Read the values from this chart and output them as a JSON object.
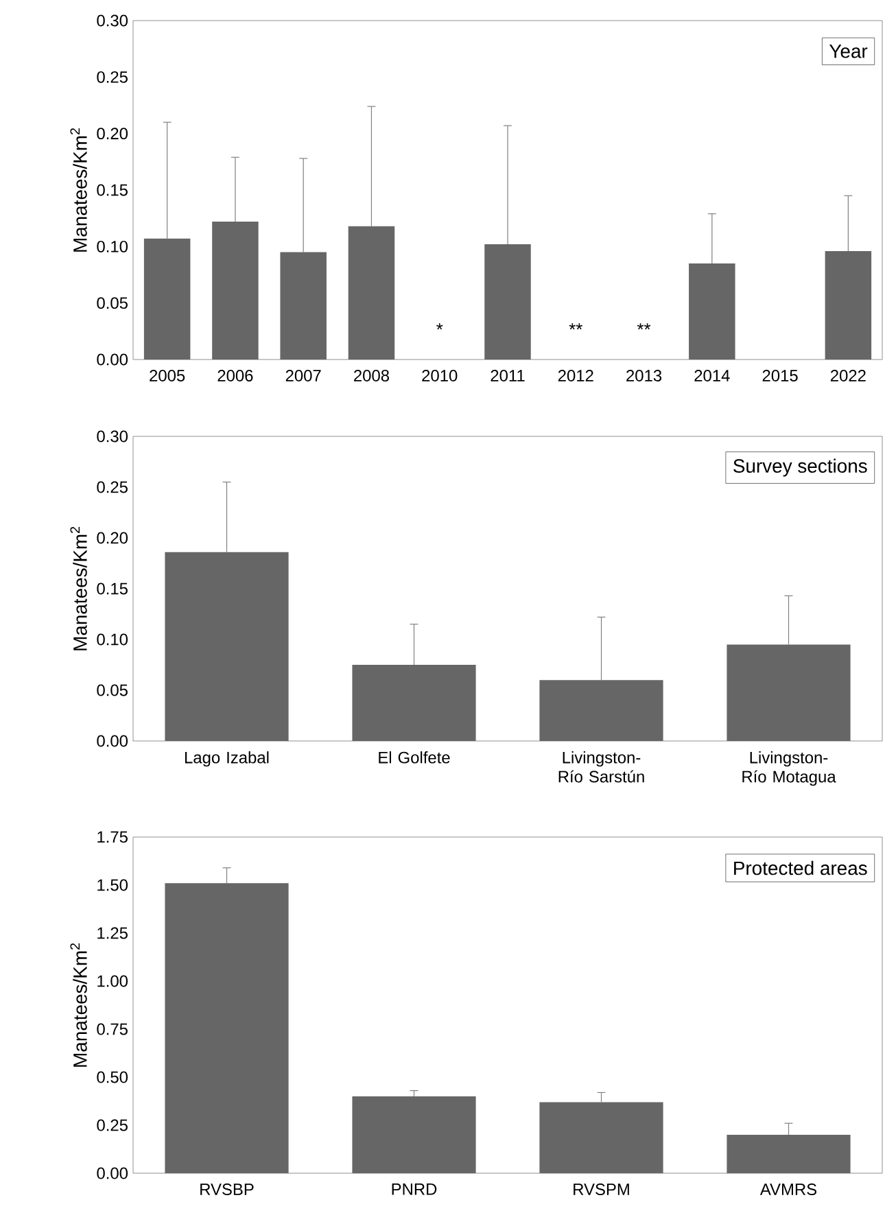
{
  "chart_data": [
    {
      "type": "bar",
      "title": "Year",
      "ylabel": "Manatees/Km$^{2}$",
      "color": "#666666",
      "categories": [
        "2005",
        "2006",
        "2007",
        "2008",
        "2010",
        "2011",
        "2012",
        "2013",
        "2014",
        "2015",
        "2022"
      ],
      "values": [
        0.107,
        0.122,
        0.095,
        0.118,
        0,
        0.102,
        0,
        0,
        0.085,
        null,
        0.096
      ],
      "errors": [
        [
          0.107,
          0.21
        ],
        [
          0.122,
          0.179
        ],
        [
          0.095,
          0.178
        ],
        [
          0.118,
          0.224
        ],
        null,
        [
          0.102,
          0.207
        ],
        null,
        null,
        [
          0.085,
          0.129
        ],
        null,
        [
          0.096,
          0.145
        ]
      ],
      "annotations": [
        {
          "text": "*",
          "x": "2010",
          "y": 0
        },
        {
          "text": "**",
          "x": "2012",
          "y": 0
        },
        {
          "text": "**",
          "x": "2013",
          "y": 0
        }
      ],
      "ylim": [
        0,
        0.3
      ],
      "yticks": [
        {
          "value": 0,
          "label": "0.00"
        },
        {
          "value": 0.05,
          "label": "0.05"
        },
        {
          "value": 0.1,
          "label": "0.10"
        },
        {
          "value": 0.15,
          "label": "0.15"
        },
        {
          "value": 0.2,
          "label": "0.20"
        },
        {
          "value": 0.25,
          "label": "0.25"
        },
        {
          "value": 0.3,
          "label": "0.30"
        }
      ]
    },
    {
      "type": "bar",
      "title": "Survey sections",
      "ylabel": "Manatees/Km$^{2}$",
      "color": "#666666",
      "categories": [
        "Lago Izabal",
        "El Golfete",
        "Livingston-Río Sarstún",
        "Livingston-Río Motagua"
      ],
      "values": [
        0.186,
        0.075,
        0.06,
        0.095
      ],
      "errors": [
        [
          0.186,
          0.255
        ],
        [
          0.075,
          0.115
        ],
        [
          0.06,
          0.122
        ],
        [
          0.095,
          0.143
        ]
      ],
      "ylim": [
        0,
        0.3
      ],
      "yticks": [
        {
          "value": 0,
          "label": "0.00"
        },
        {
          "value": 0.05,
          "label": "0.05"
        },
        {
          "value": 0.1,
          "label": "0.10"
        },
        {
          "value": 0.15,
          "label": "0.15"
        },
        {
          "value": 0.2,
          "label": "0.20"
        },
        {
          "value": 0.25,
          "label": "0.25"
        },
        {
          "value": 0.3,
          "label": "0.30"
        }
      ]
    },
    {
      "type": "bar",
      "title": "Protected areas",
      "ylabel": "Manatees/Km$^{2}$",
      "color": "#666666",
      "categories": [
        "RVSBP",
        "PNRD",
        "RVSPM",
        "AVMRS"
      ],
      "values": [
        1.51,
        0.4,
        0.37,
        0.2
      ],
      "errors": [
        [
          1.51,
          1.59
        ],
        [
          0.4,
          0.43
        ],
        [
          0.37,
          0.42
        ],
        [
          0.2,
          0.26
        ]
      ],
      "ylim": [
        0,
        1.75
      ],
      "yticks": [
        {
          "value": 0,
          "label": "0.00"
        },
        {
          "value": 0.25,
          "label": "0.25"
        },
        {
          "value": 0.5,
          "label": "0.50"
        },
        {
          "value": 0.75,
          "label": "0.75"
        },
        {
          "value": 1,
          "label": "1.00"
        },
        {
          "value": 1.25,
          "label": "1.25"
        },
        {
          "value": 1.5,
          "label": "1.50"
        },
        {
          "value": 1.75,
          "label": "1.75"
        }
      ]
    }
  ]
}
